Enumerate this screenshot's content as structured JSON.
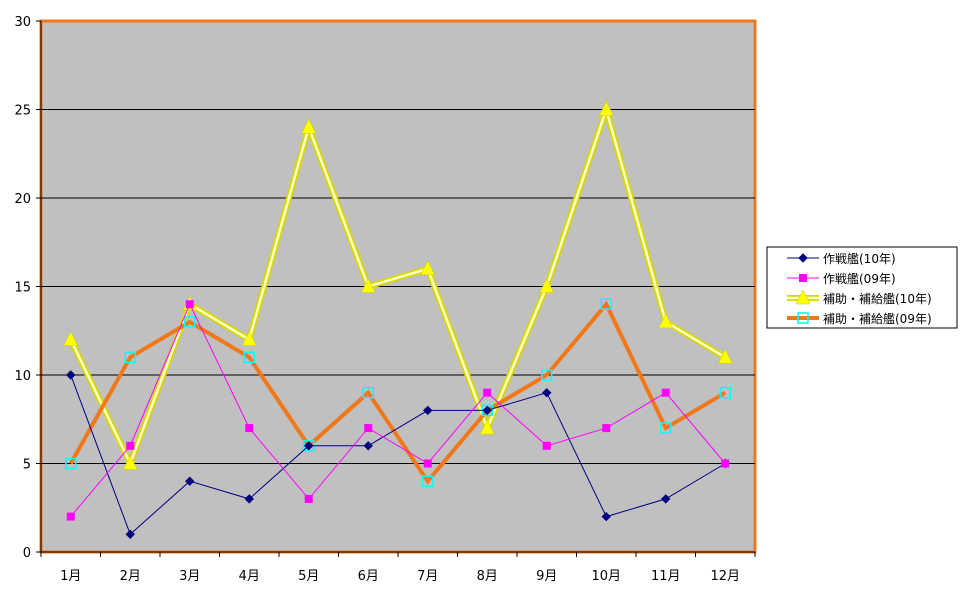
{
  "chart_data": {
    "type": "line",
    "categories": [
      "1月",
      "2月",
      "3月",
      "4月",
      "5月",
      "6月",
      "7月",
      "8月",
      "9月",
      "10月",
      "11月",
      "12月"
    ],
    "y_ticks": [
      "0",
      "5",
      "10",
      "15",
      "20",
      "25",
      "30"
    ],
    "ylim": [
      0,
      30
    ],
    "grid": "horizontal",
    "legend_position": "right",
    "colors": {
      "plot_background": "#c0c0c0",
      "plot_border": "#f07818",
      "gridline": "#000000"
    },
    "series": [
      {
        "name": "作戦艦(10年)",
        "values": [
          10,
          1,
          4,
          3,
          6,
          6,
          8,
          8,
          9,
          2,
          3,
          5
        ],
        "color": "#000080",
        "marker": "diamond",
        "line_style": "thin"
      },
      {
        "name": "作戦艦(09年)",
        "values": [
          2,
          6,
          14,
          7,
          3,
          7,
          5,
          9,
          6,
          7,
          9,
          5
        ],
        "color": "#ff00ff",
        "marker": "square",
        "line_style": "thin"
      },
      {
        "name": "補助・補給艦(10年)",
        "values": [
          12,
          5,
          14,
          12,
          24,
          15,
          16,
          7,
          15,
          25,
          13,
          11
        ],
        "color": "#ffff00",
        "marker": "triangle",
        "line_style": "thick-outlined"
      },
      {
        "name": "補助・補給艦(09年)",
        "values": [
          5,
          11,
          13,
          11,
          6,
          9,
          4,
          8,
          10,
          14,
          7,
          9
        ],
        "color": "#f07818",
        "marker": "hollow-square",
        "marker_color": "#00ffff",
        "line_style": "thick"
      }
    ]
  }
}
